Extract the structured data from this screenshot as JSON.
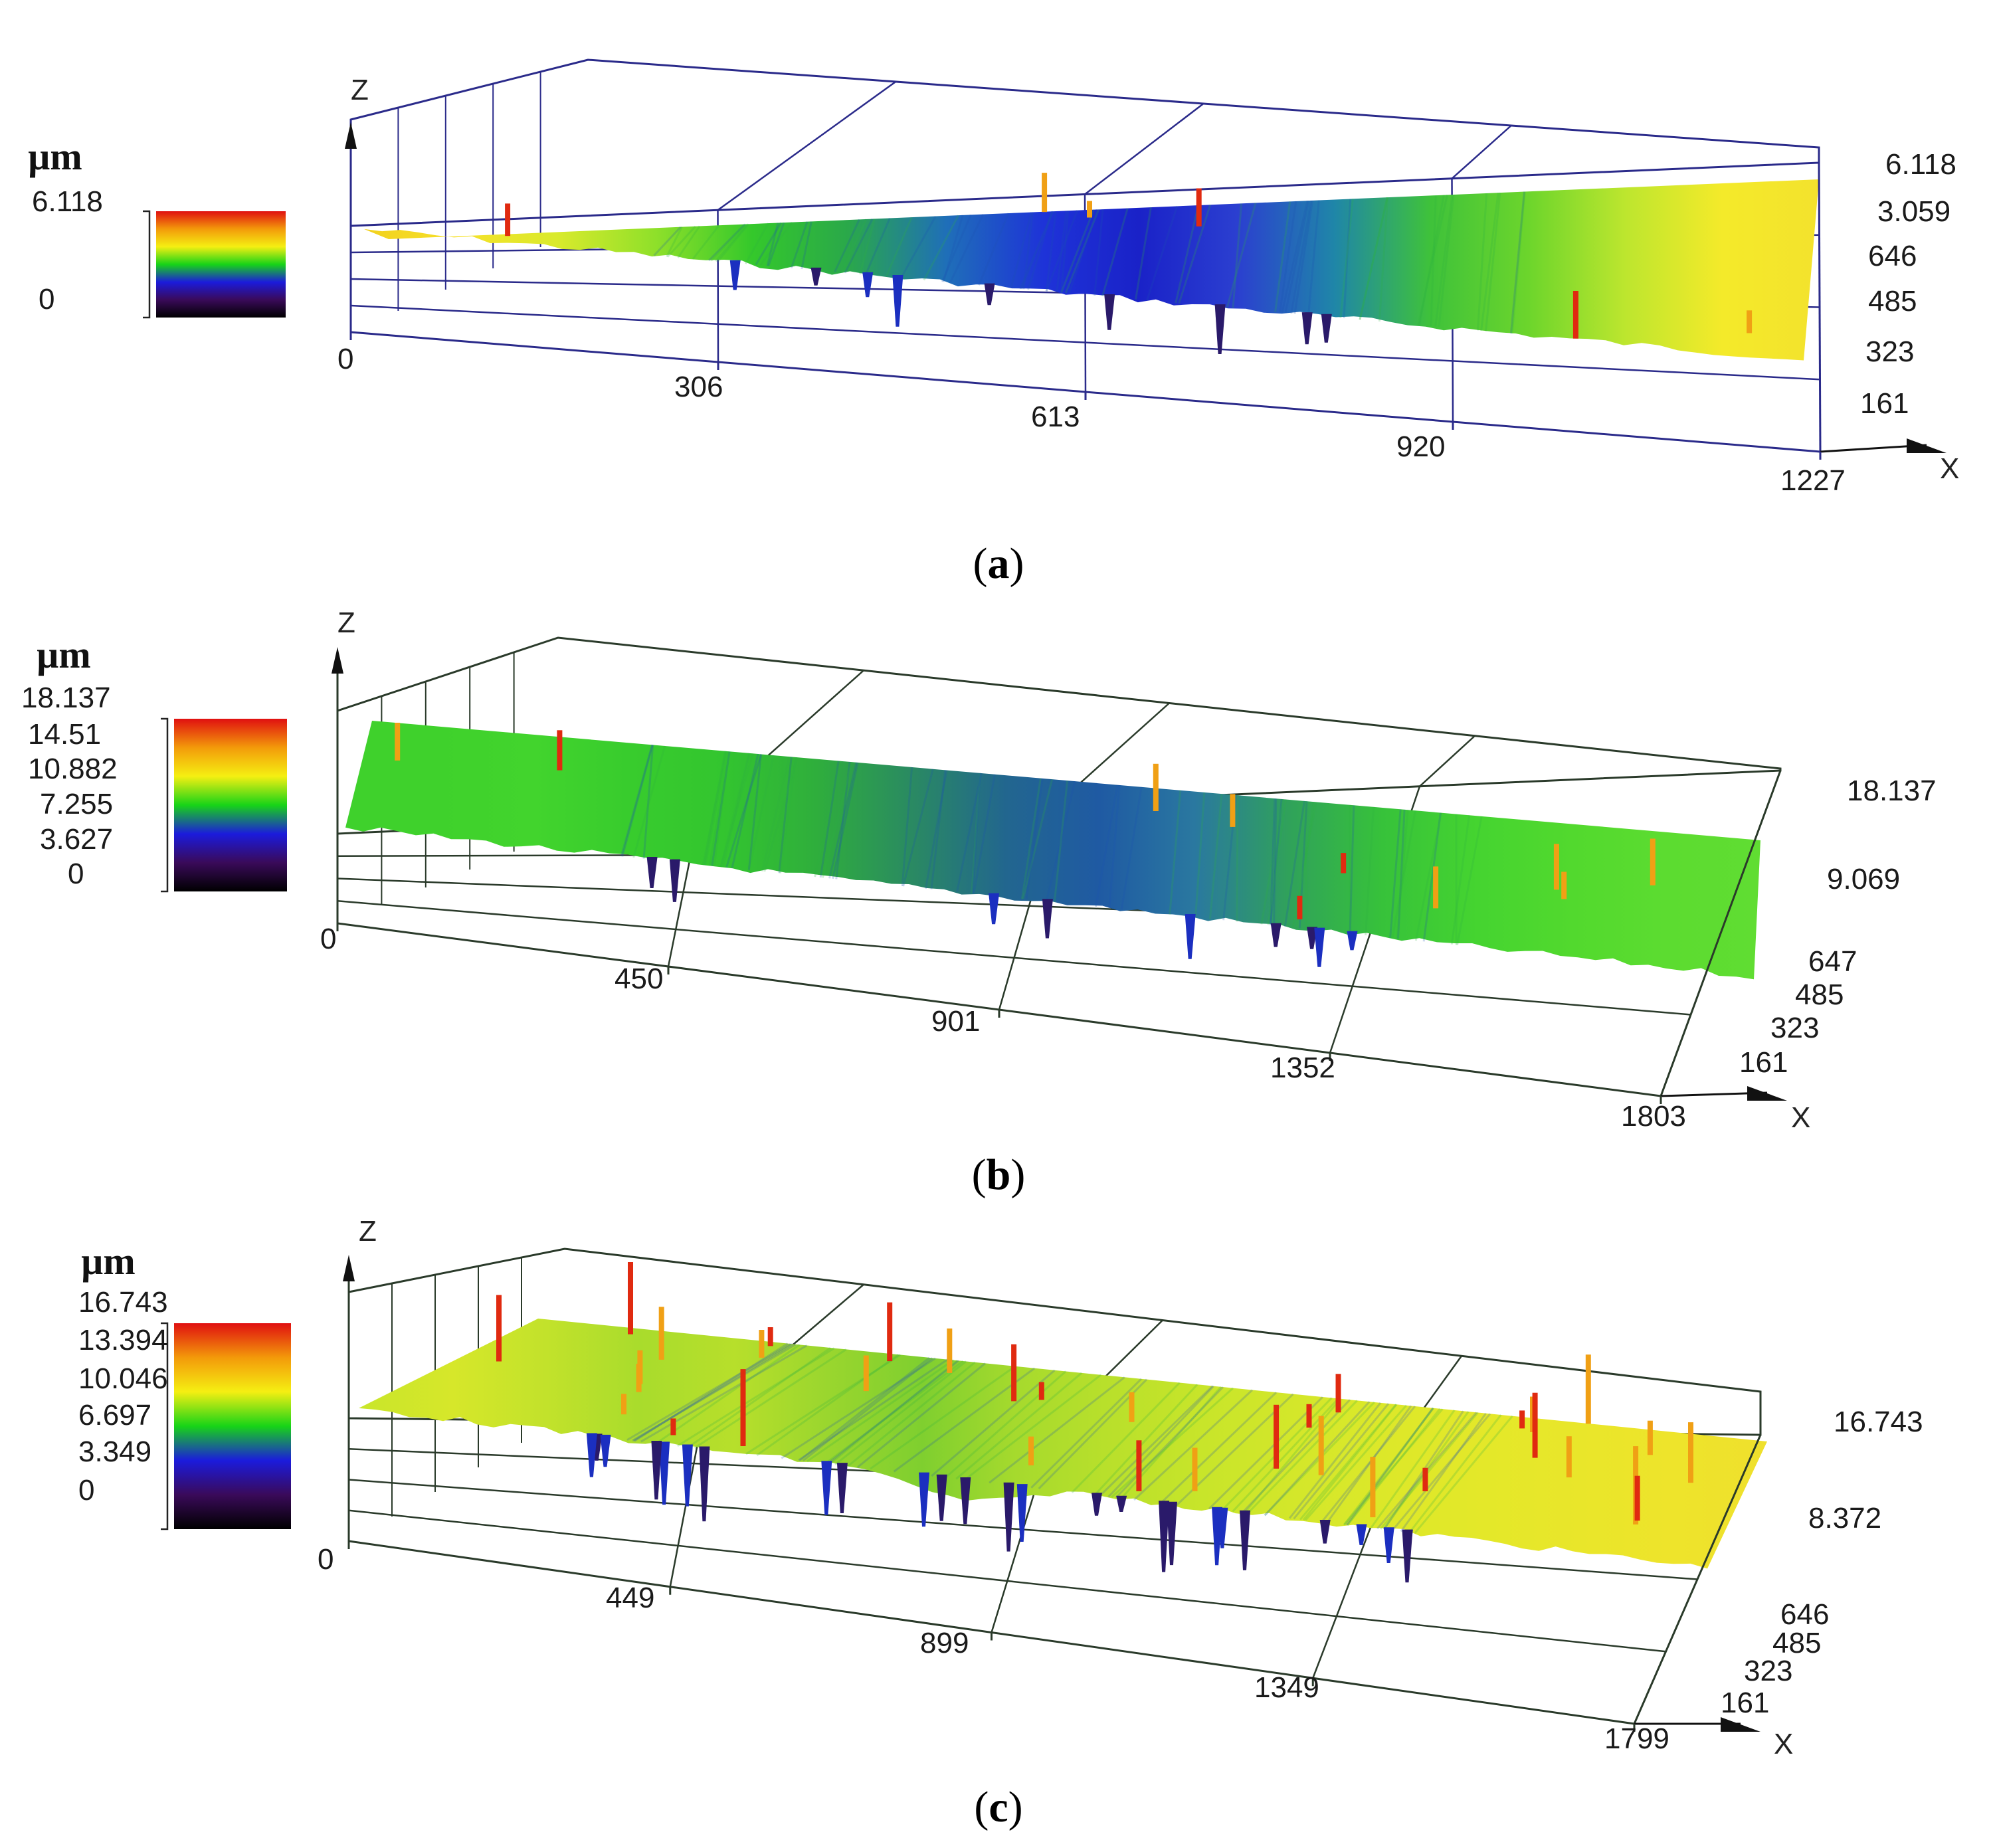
{
  "chart_data": [
    {
      "type": "surface3d",
      "caption": "a",
      "colorbar": {
        "unit": "µm",
        "ticks": [
          "6.118",
          "0"
        ],
        "range": [
          0,
          6.118
        ]
      },
      "x_axis": {
        "label": "X",
        "ticks": [
          "0",
          "306",
          "613",
          "920",
          "1227"
        ],
        "range": [
          0,
          1227
        ]
      },
      "y_axis": {
        "ticks": [
          "161",
          "323",
          "485",
          "646"
        ]
      },
      "z_axis": {
        "label": "Z",
        "ticks": [
          "3.059",
          "6.118"
        ],
        "range": [
          0,
          6.118
        ]
      },
      "surface_bands": [
        "#f2d11e",
        "#f6e12a",
        "#d9ea2c",
        "#8fe02a",
        "#34c82b",
        "#2aa84a",
        "#1f6fb8",
        "#1e33d8",
        "#1a22c8",
        "#2b3fd0",
        "#1f86a8",
        "#3fc23a",
        "#6cd52c",
        "#bde62e",
        "#f4ea2a",
        "#f3e22d"
      ],
      "colors": [
        "#000000",
        "#3a0a5a",
        "#1b1bdc",
        "#17d417",
        "#f5ef12",
        "#f39a0a",
        "#e01010"
      ]
    },
    {
      "type": "surface3d",
      "caption": "b",
      "colorbar": {
        "unit": "µm",
        "ticks": [
          "18.137",
          "14.51",
          "10.882",
          "7.255",
          "3.627",
          "0"
        ],
        "range": [
          0,
          18.137
        ]
      },
      "x_axis": {
        "label": "X",
        "ticks": [
          "0",
          "450",
          "901",
          "1352",
          "1803"
        ],
        "range": [
          0,
          1803
        ]
      },
      "y_axis": {
        "ticks": [
          "161",
          "323",
          "485",
          "647"
        ]
      },
      "z_axis": {
        "label": "Z",
        "ticks": [
          "9.069",
          "18.137"
        ],
        "range": [
          0,
          18.137
        ]
      },
      "surface_bands": [
        "#3fd12c",
        "#3fd12c",
        "#42d42d",
        "#38cc2d",
        "#33c52f",
        "#2fae3c",
        "#2a8a62",
        "#22668f",
        "#1f5aa3",
        "#2a78a0",
        "#30a25a",
        "#37c23a",
        "#45d430",
        "#52d92e",
        "#5cdc30",
        "#60dd32"
      ],
      "colors": [
        "#000000",
        "#3a0a5a",
        "#1b1bdc",
        "#17d417",
        "#f5ef12",
        "#f39a0a",
        "#e01010"
      ]
    },
    {
      "type": "surface3d",
      "caption": "c",
      "colorbar": {
        "unit": "µm",
        "ticks": [
          "16.743",
          "13.394",
          "10.046",
          "6.697",
          "3.349",
          "0"
        ],
        "range": [
          0,
          16.743
        ]
      },
      "x_axis": {
        "label": "X",
        "ticks": [
          "0",
          "449",
          "899",
          "1349",
          "1799"
        ],
        "range": [
          0,
          1799
        ]
      },
      "y_axis": {
        "ticks": [
          "161",
          "323",
          "485",
          "646"
        ]
      },
      "z_axis": {
        "label": "Z",
        "ticks": [
          "8.372",
          "16.743"
        ],
        "range": [
          0,
          16.743
        ]
      },
      "surface_bands": [
        "#c9e62a",
        "#d6e72a",
        "#c2e22b",
        "#a9dc2c",
        "#b7df2b",
        "#9ad62e",
        "#7fcf2f",
        "#a6da2d",
        "#b9e02b",
        "#c8e52a",
        "#d4e72a",
        "#dde829",
        "#e4e829",
        "#e9e62a",
        "#eee42b",
        "#efe02c"
      ],
      "colors": [
        "#000000",
        "#3a0a5a",
        "#1b1bdc",
        "#17d417",
        "#f5ef12",
        "#f39a0a",
        "#e01010"
      ]
    }
  ]
}
